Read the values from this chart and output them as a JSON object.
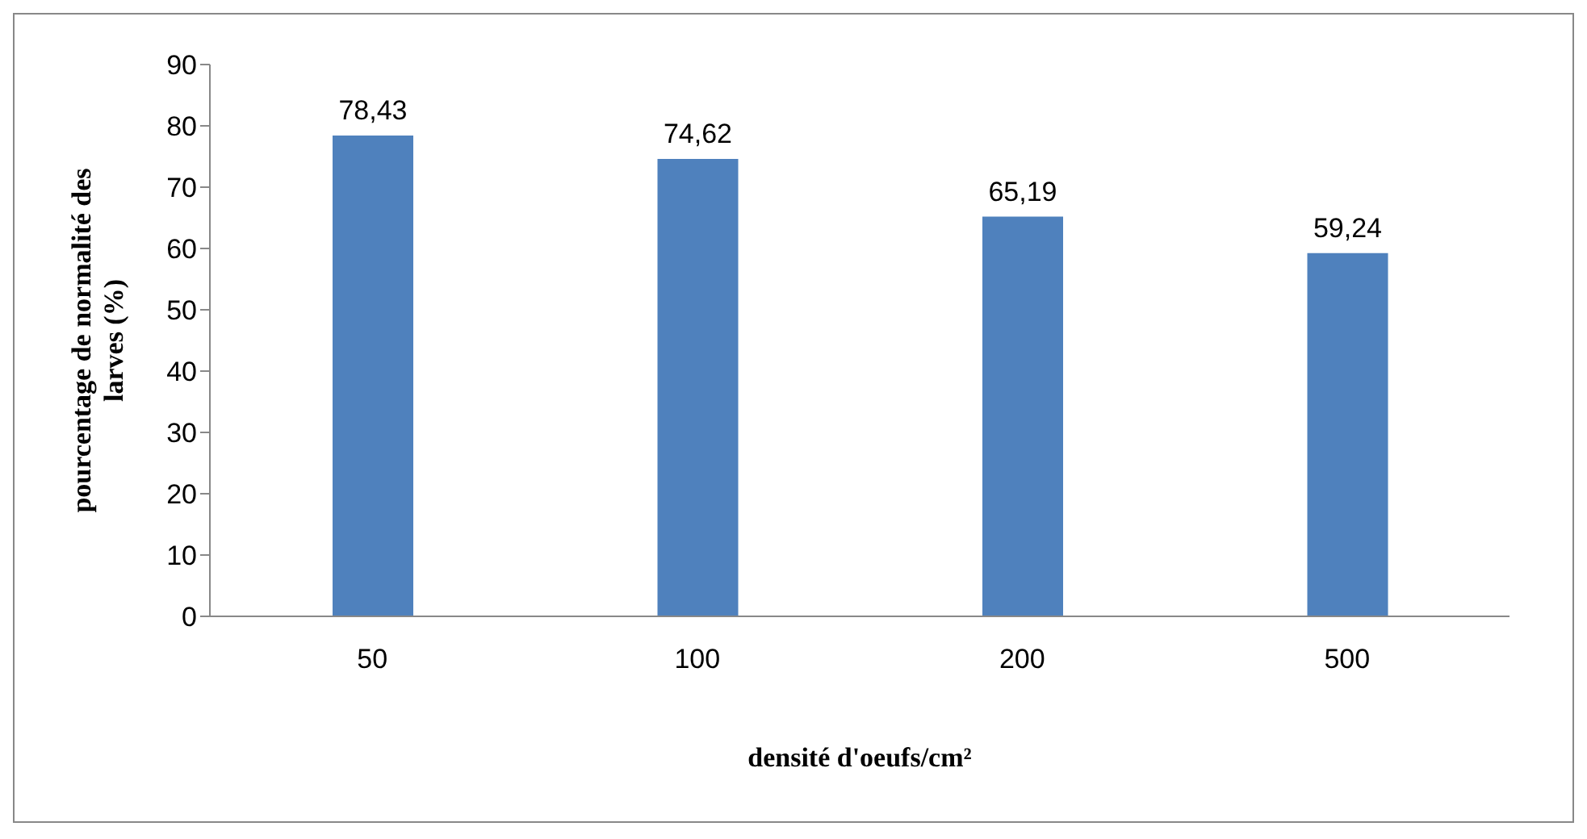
{
  "chart_data": {
    "type": "bar",
    "xlabel": "densité d'oeufs/cm²",
    "ylabel": "pourcentage de normalité des larves (%)",
    "categories": [
      "50",
      "100",
      "200",
      "500"
    ],
    "values": [
      78.43,
      74.62,
      65.19,
      59.24
    ],
    "value_labels": [
      "78,43",
      "74,62",
      "65,19",
      "59,24"
    ],
    "color": "#4f81bd",
    "ylim": [
      0,
      90
    ],
    "yticks": [
      0,
      10,
      20,
      30,
      40,
      50,
      60,
      70,
      80,
      90
    ],
    "grid": false
  }
}
